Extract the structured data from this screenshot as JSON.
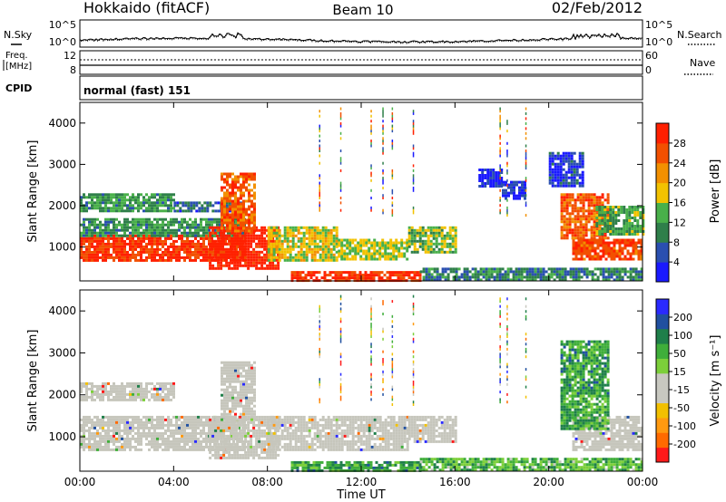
{
  "header": {
    "station": "Hokkaido (fitACF)",
    "beam": "Beam 10",
    "date": "02/Feb/2012"
  },
  "top_panels": {
    "noise": {
      "left_label": "N.Sky",
      "right_label": "N.Search",
      "ytick_top": "10^5",
      "ytick_bottom": "10^0"
    },
    "freq": {
      "left_label_1": "Freq.",
      "left_label_2": "[MHz]",
      "ytick_top": "12",
      "ytick_bottom": "8",
      "right_label": "Nave",
      "right_tick_top": "60",
      "right_tick_bottom": "0"
    },
    "cpid": {
      "left_label": "CPID",
      "text": "normal (fast) 151"
    }
  },
  "colors": {
    "power": [
      "#1a1aff",
      "#2a4fb0",
      "#2f7f4a",
      "#49b04a",
      "#f2c200",
      "#f29000",
      "#f25000",
      "#ff2000"
    ],
    "velocity": [
      "#ff1a1a",
      "#ff6a00",
      "#ff9a10",
      "#f2c000",
      "#c8c8c0",
      "#c8c8c0",
      "#7ccf3a",
      "#3fae3a",
      "#1f7f4a",
      "#2050a0",
      "#2a2aff"
    ],
    "ground_scatter": "#c6c6bc"
  },
  "chart_data": [
    {
      "type": "heatmap",
      "panel": "power",
      "ylabel": "Slant Range [km]",
      "y_ticks": [
        "1000",
        "2000",
        "3000",
        "4000"
      ],
      "y_range_km": [
        180,
        4500
      ],
      "x_ticks": [
        "00:00",
        "04:00",
        "08:00",
        "12:00",
        "16:00",
        "20:00",
        "00:00"
      ],
      "x_range_hours": [
        0,
        24
      ],
      "colorbar": {
        "label": "Power [dB]",
        "ticks": [
          "4",
          "8",
          "12",
          "16",
          "20",
          "24",
          "28"
        ],
        "range": [
          0,
          32
        ]
      },
      "regions": [
        {
          "t0": 0.0,
          "t1": 7.0,
          "r0": 700,
          "r1": 1300,
          "level": 0.9
        },
        {
          "t0": 0.0,
          "t1": 7.0,
          "r0": 1300,
          "r1": 1700,
          "level": 0.35
        },
        {
          "t0": 0.0,
          "t1": 4.0,
          "r0": 1900,
          "r1": 2300,
          "level": 0.35
        },
        {
          "t0": 4.0,
          "t1": 7.0,
          "r0": 1900,
          "r1": 2100,
          "level": 0.2
        },
        {
          "t0": 5.5,
          "t1": 8.5,
          "r0": 500,
          "r1": 1500,
          "level": 0.97
        },
        {
          "t0": 6.0,
          "t1": 7.5,
          "r0": 1400,
          "r1": 2800,
          "level": 0.8
        },
        {
          "t0": 8.0,
          "t1": 11.0,
          "r0": 700,
          "r1": 1500,
          "level": 0.55
        },
        {
          "t0": 11.0,
          "t1": 14.0,
          "r0": 700,
          "r1": 1200,
          "level": 0.5
        },
        {
          "t0": 9.0,
          "t1": 14.5,
          "r0": 200,
          "r1": 420,
          "level": 0.9
        },
        {
          "t0": 14.5,
          "t1": 24.0,
          "r0": 200,
          "r1": 500,
          "level": 0.3
        },
        {
          "t0": 14.0,
          "t1": 16.0,
          "r0": 900,
          "r1": 1500,
          "level": 0.45
        },
        {
          "t0": 17.0,
          "t1": 18.0,
          "r0": 2500,
          "r1": 2900,
          "level": 0.1
        },
        {
          "t0": 18.0,
          "t1": 19.0,
          "r0": 2200,
          "r1": 2600,
          "level": 0.1
        },
        {
          "t0": 20.0,
          "t1": 21.5,
          "r0": 2500,
          "r1": 3300,
          "level": 0.15
        },
        {
          "t0": 21.0,
          "t1": 24.0,
          "r0": 700,
          "r1": 1200,
          "level": 0.85
        },
        {
          "t0": 20.5,
          "t1": 22.5,
          "r0": 1200,
          "r1": 2300,
          "level": 0.8
        },
        {
          "t0": 22.0,
          "t1": 24.0,
          "r0": 1300,
          "r1": 2000,
          "level": 0.4
        }
      ]
    },
    {
      "type": "heatmap",
      "panel": "velocity",
      "ylabel": "Slant Range [km]",
      "y_ticks": [
        "1000",
        "2000",
        "3000",
        "4000"
      ],
      "y_range_km": [
        180,
        4500
      ],
      "x_ticks": [
        "00:00",
        "04:00",
        "08:00",
        "12:00",
        "16:00",
        "20:00",
        "00:00"
      ],
      "x_range_hours": [
        0,
        24
      ],
      "xlabel": "Time UT",
      "colorbar": {
        "label": "Velocity [m s⁻¹]",
        "ticks": [
          "-200",
          "-100",
          "-50",
          "-15",
          "15",
          "50",
          "100",
          "200"
        ],
        "range": [
          -250,
          250
        ]
      },
      "regions": [
        {
          "t0": 0.0,
          "t1": 7.0,
          "r0": 700,
          "r1": 1500,
          "level": 0.5
        },
        {
          "t0": 0.0,
          "t1": 4.0,
          "r0": 1900,
          "r1": 2300,
          "level": 0.5
        },
        {
          "t0": 5.5,
          "t1": 8.5,
          "r0": 500,
          "r1": 1500,
          "level": 0.5
        },
        {
          "t0": 6.0,
          "t1": 7.5,
          "r0": 1400,
          "r1": 2800,
          "level": 0.5
        },
        {
          "t0": 8.0,
          "t1": 14.0,
          "r0": 700,
          "r1": 1500,
          "level": 0.5
        },
        {
          "t0": 9.0,
          "t1": 14.5,
          "r0": 200,
          "r1": 420,
          "level": 0.72
        },
        {
          "t0": 14.5,
          "t1": 24.0,
          "r0": 200,
          "r1": 500,
          "level": 0.65
        },
        {
          "t0": 14.0,
          "t1": 16.0,
          "r0": 900,
          "r1": 1500,
          "level": 0.5
        },
        {
          "t0": 20.5,
          "t1": 22.5,
          "r0": 2000,
          "r1": 3300,
          "level": 0.72
        },
        {
          "t0": 21.0,
          "t1": 24.0,
          "r0": 700,
          "r1": 1500,
          "level": 0.5
        },
        {
          "t0": 20.5,
          "t1": 22.5,
          "r0": 1200,
          "r1": 2000,
          "level": 0.68
        }
      ]
    }
  ]
}
